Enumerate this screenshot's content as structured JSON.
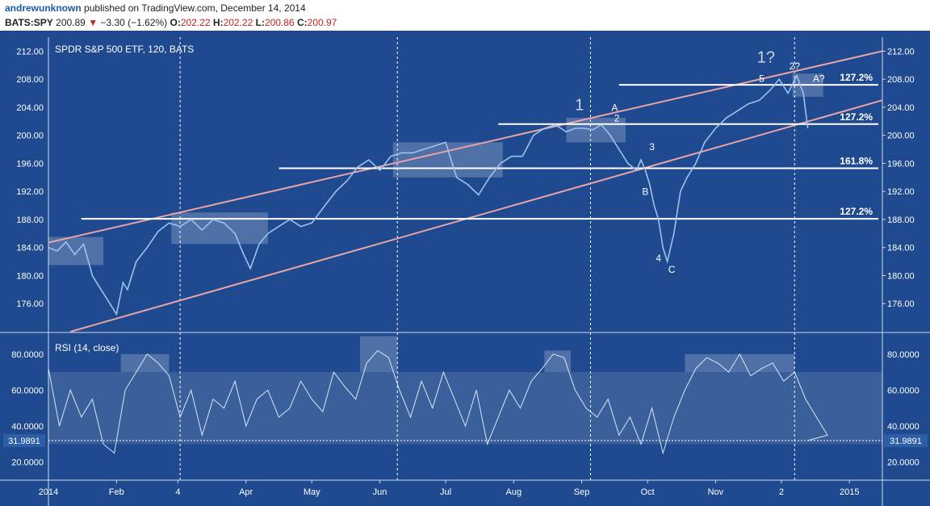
{
  "header": {
    "author": "andrewunknown",
    "published": "published on TradingView.com, December 14, 2014",
    "symbol": "BATS:SPY",
    "last": "200.89",
    "change": "−3.30 (−1.62%)",
    "o_label": "O:",
    "o": "202.22",
    "h_label": "H:",
    "h": "202.22",
    "l_label": "L:",
    "l": "200.86",
    "c_label": "C:",
    "c": "200.97"
  },
  "colors": {
    "background": "#1f4a8f",
    "price_line": "#9cc3ee",
    "channel": "#e8a4a6",
    "fib_line": "#ffffff",
    "negative": "#c0271f"
  },
  "chart_data": [
    {
      "type": "line",
      "title": "SPDR S&P 500 ETF, 120, BATS",
      "ylim": [
        172,
        214
      ],
      "yticks": [
        "212.00",
        "208.00",
        "204.00",
        "200.00",
        "196.00",
        "192.00",
        "188.00",
        "184.00",
        "180.00",
        "176.00"
      ],
      "ytick_values": [
        212,
        208,
        204,
        200,
        196,
        192,
        188,
        184,
        180,
        176
      ],
      "x_labels": [
        "2014",
        "Feb",
        "4",
        "Apr",
        "May",
        "Jun",
        "Jul",
        "Aug",
        "Sep",
        "Oct",
        "Nov",
        "2",
        "2015"
      ],
      "x_label_days": [
        0,
        31,
        59,
        90,
        120,
        151,
        181,
        212,
        243,
        273,
        304,
        334,
        365
      ],
      "xlim_days": [
        0,
        380
      ],
      "series": [
        {
          "x_days": [
            0,
            4,
            8,
            12,
            16,
            20,
            24,
            28,
            31,
            34,
            36,
            40,
            45,
            50,
            55,
            60,
            65,
            70,
            75,
            80,
            85,
            89,
            92,
            96,
            100,
            105,
            110,
            115,
            120,
            126,
            131,
            136,
            141,
            146,
            151,
            156,
            161,
            166,
            171,
            176,
            181,
            186,
            191,
            196,
            201,
            206,
            211,
            216,
            221,
            226,
            231,
            236,
            240,
            244,
            248,
            252,
            256,
            260,
            264,
            268,
            270,
            272,
            274,
            276,
            278,
            280,
            282,
            285,
            288,
            291,
            295,
            299,
            304,
            309,
            314,
            319,
            324,
            329,
            333,
            337,
            341,
            344,
            346
          ],
          "y": [
            184,
            183.5,
            184.8,
            183,
            184.5,
            180,
            178,
            176,
            174.5,
            179,
            178,
            182,
            184,
            186.3,
            187.5,
            187,
            188,
            186.5,
            188,
            187.5,
            186,
            183,
            181,
            184.5,
            186,
            187,
            188,
            187,
            187.5,
            190,
            192,
            193.5,
            195.5,
            196.5,
            195,
            197,
            197.5,
            197.5,
            198,
            198.5,
            199,
            194,
            193,
            191.5,
            194,
            196,
            197,
            197,
            200,
            201,
            201.5,
            200.5,
            201,
            201,
            200.8,
            201.5,
            200,
            198,
            196,
            195,
            196.5,
            195,
            193,
            190,
            188,
            184,
            182,
            186,
            192,
            194,
            196,
            199,
            201,
            202.5,
            203.5,
            204.5,
            205,
            206.5,
            208,
            206,
            208.5,
            206,
            201
          ]
        }
      ],
      "horizontal_levels": [
        {
          "label": "127.2%",
          "value": 207.2,
          "x_start_days": 260
        },
        {
          "label": "127.2%",
          "value": 201.6,
          "x_start_days": 205
        },
        {
          "label": "161.8%",
          "value": 195.3,
          "x_start_days": 105
        },
        {
          "label": "127.2%",
          "value": 188.1,
          "x_start_days": 15
        }
      ],
      "channel": [
        {
          "x_days": [
            0,
            380
          ],
          "y": [
            184.7,
            212
          ]
        },
        {
          "x_days": [
            10,
            380
          ],
          "y": [
            172,
            205
          ]
        }
      ],
      "vertical_markers_days": [
        60,
        159,
        247,
        340
      ],
      "wave_labels": [
        {
          "text": "1?",
          "x_days": 327,
          "y": 210.4
        },
        {
          "text": "2?",
          "x_days": 340,
          "y": 209.4
        },
        {
          "text": "A?",
          "x_days": 351,
          "y": 207.6
        },
        {
          "text": "5",
          "x_days": 325,
          "y": 207.6
        },
        {
          "text": "1",
          "x_days": 242,
          "y": 203.6
        },
        {
          "text": "A",
          "x_days": 258,
          "y": 203.5
        },
        {
          "text": "2",
          "x_days": 259,
          "y": 202.0
        },
        {
          "text": "3",
          "x_days": 275,
          "y": 197.9
        },
        {
          "text": "B",
          "x_days": 272,
          "y": 191.5
        },
        {
          "text": "4",
          "x_days": 278,
          "y": 182.0
        },
        {
          "text": "C",
          "x_days": 284,
          "y": 180.4
        }
      ],
      "highlight_boxes": [
        {
          "x_days": [
            0,
            25
          ],
          "y": [
            181.5,
            185.5
          ]
        },
        {
          "x_days": [
            56,
            100
          ],
          "y": [
            184.5,
            189
          ]
        },
        {
          "x_days": [
            157,
            207
          ],
          "y": [
            194,
            199
          ]
        },
        {
          "x_days": [
            236,
            263
          ],
          "y": [
            199,
            202.5
          ]
        },
        {
          "x_days": [
            339,
            353
          ],
          "y": [
            205.5,
            208.8
          ]
        }
      ]
    },
    {
      "type": "line",
      "title": "RSI (14, close)",
      "ylim": [
        10,
        92
      ],
      "yticks": [
        "80.0000",
        "60.0000",
        "40.0000",
        "20.0000"
      ],
      "ytick_values": [
        80,
        60,
        40,
        20
      ],
      "current_label": "31.9891",
      "current_value": 31.9891,
      "band": [
        30,
        70
      ],
      "highlight_boxes": [
        {
          "x_days": [
            33,
            55
          ],
          "y": [
            70,
            80
          ]
        },
        {
          "x_days": [
            142,
            159
          ],
          "y": [
            70,
            90
          ]
        },
        {
          "x_days": [
            226,
            238
          ],
          "y": [
            70,
            82
          ]
        },
        {
          "x_days": [
            290,
            340
          ],
          "y": [
            70,
            80
          ]
        }
      ],
      "series": [
        {
          "x_days": [
            0,
            5,
            10,
            15,
            20,
            25,
            30,
            35,
            40,
            45,
            50,
            55,
            60,
            65,
            70,
            75,
            80,
            85,
            90,
            95,
            100,
            105,
            110,
            115,
            120,
            125,
            130,
            135,
            140,
            145,
            150,
            155,
            160,
            165,
            170,
            175,
            180,
            185,
            190,
            195,
            200,
            205,
            210,
            215,
            220,
            225,
            230,
            235,
            240,
            245,
            250,
            255,
            260,
            265,
            270,
            275,
            280,
            285,
            290,
            295,
            300,
            305,
            310,
            315,
            320,
            325,
            330,
            335,
            340,
            345,
            350,
            355,
            346
          ],
          "y": [
            72,
            40,
            60,
            45,
            55,
            30,
            25,
            60,
            70,
            80,
            75,
            68,
            45,
            60,
            35,
            55,
            50,
            65,
            40,
            55,
            60,
            45,
            50,
            65,
            55,
            48,
            70,
            62,
            55,
            75,
            82,
            78,
            60,
            45,
            65,
            50,
            70,
            55,
            40,
            60,
            30,
            45,
            60,
            50,
            65,
            72,
            80,
            78,
            60,
            50,
            45,
            55,
            35,
            45,
            30,
            50,
            25,
            45,
            60,
            72,
            78,
            75,
            70,
            80,
            68,
            72,
            75,
            65,
            70,
            55,
            45,
            35,
            32
          ]
        }
      ]
    }
  ]
}
